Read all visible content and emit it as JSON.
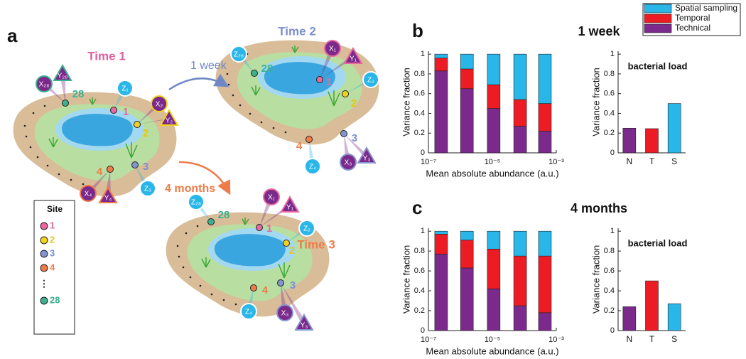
{
  "diagram": {
    "label": "a",
    "times": [
      {
        "title": "Time 1",
        "sites": [
          "28",
          "1",
          "2",
          "3",
          "4"
        ],
        "samples": [
          "X₂₈",
          "Y₂₈",
          "Z₁",
          "X₂",
          "Y₂",
          "Z₃",
          "X₄",
          "Y₄"
        ]
      },
      {
        "title": "Time 2",
        "sites": [
          "28",
          "1",
          "2",
          "3",
          "4"
        ],
        "samples": [
          "Z₂₈",
          "X₁",
          "Y₁",
          "Z₂",
          "Z₄",
          "X₃",
          "Y₃"
        ]
      },
      {
        "title": "Time 3",
        "sites": [
          "28",
          "1",
          "2",
          "3",
          "4"
        ],
        "samples": [
          "Z₂₈",
          "X₁",
          "Y₁",
          "Z₂",
          "Z₄",
          "X₃",
          "Y₃"
        ]
      }
    ],
    "arrows": [
      {
        "label": "1 week"
      },
      {
        "label": "4 months"
      }
    ],
    "site_legend": {
      "title": "Site",
      "items": [
        "1",
        "2",
        "3",
        "4",
        "⋮",
        "28"
      ]
    }
  },
  "chart_data": [
    {
      "type": "stacked_bar",
      "panel": "b",
      "title": "1 week",
      "xlabel": "Mean absolute abundance (a.u.)",
      "ylabel": "Variance fraction",
      "xscale": "log",
      "x": [
        2.5e-07,
        1.6e-06,
        1.1e-05,
        7.4e-05,
        0.00044
      ],
      "xlim": [
        1e-07,
        0.001
      ],
      "xticks": [
        {
          "value": 1e-07,
          "label": "10⁻⁷"
        },
        {
          "value": 1e-05,
          "label": "10⁻⁵"
        },
        {
          "value": 0.001,
          "label": "10⁻³"
        }
      ],
      "ylim": [
        0,
        1.03
      ],
      "yticks": [
        0,
        0.2,
        0.4,
        0.6,
        0.8,
        1
      ],
      "series": [
        {
          "name": "Technical",
          "color": "#7b2a8c",
          "values": [
            0.83,
            0.65,
            0.45,
            0.27,
            0.22
          ]
        },
        {
          "name": "Temporal",
          "color": "#ed1c24",
          "values": [
            0.13,
            0.2,
            0.24,
            0.27,
            0.28
          ]
        },
        {
          "name": "Spatial sampling",
          "color": "#29b6e9",
          "values": [
            0.04,
            0.15,
            0.31,
            0.46,
            0.5
          ]
        }
      ]
    },
    {
      "type": "bar",
      "title": "bacterial load",
      "ylabel": "Variance fraction",
      "categories": [
        "N",
        "T",
        "S"
      ],
      "values": [
        0.25,
        0.245,
        0.5
      ],
      "colors": [
        "#7b2a8c",
        "#ed1c24",
        "#29b6e9"
      ],
      "ylim": [
        0,
        1.03
      ],
      "yticks": [
        0,
        0.2,
        0.4,
        0.6,
        0.8,
        1
      ]
    },
    {
      "type": "stacked_bar",
      "panel": "c",
      "title": "4 months",
      "xlabel": "Mean absolute abundance (a.u.)",
      "ylabel": "Variance fraction",
      "xscale": "log",
      "x": [
        2.5e-07,
        1.6e-06,
        1.1e-05,
        7.4e-05,
        0.00044
      ],
      "xlim": [
        1e-07,
        0.001
      ],
      "xticks": [
        {
          "value": 1e-07,
          "label": "10⁻⁷"
        },
        {
          "value": 1e-05,
          "label": "10⁻⁵"
        },
        {
          "value": 0.001,
          "label": "10⁻³"
        }
      ],
      "ylim": [
        0,
        1.03
      ],
      "yticks": [
        0,
        0.2,
        0.4,
        0.6,
        0.8,
        1
      ],
      "series": [
        {
          "color": "#7b2a8c",
          "values": [
            0.77,
            0.63,
            0.42,
            0.25,
            0.18
          ]
        },
        {
          "color": "#ed1c24",
          "values": [
            0.2,
            0.28,
            0.4,
            0.5,
            0.57
          ]
        },
        {
          "color": "#29b6e9",
          "values": [
            0.03,
            0.09,
            0.18,
            0.25,
            0.25
          ]
        }
      ]
    },
    {
      "type": "bar",
      "title": "bacterial load",
      "ylabel": "Variance fraction",
      "categories": [
        "N",
        "T",
        "S"
      ],
      "values": [
        0.24,
        0.5,
        0.27
      ],
      "colors": [
        "#7b2a8c",
        "#ed1c24",
        "#29b6e9"
      ],
      "ylim": [
        0,
        1.03
      ],
      "yticks": [
        0,
        0.2,
        0.4,
        0.6,
        0.8,
        1
      ]
    }
  ]
}
